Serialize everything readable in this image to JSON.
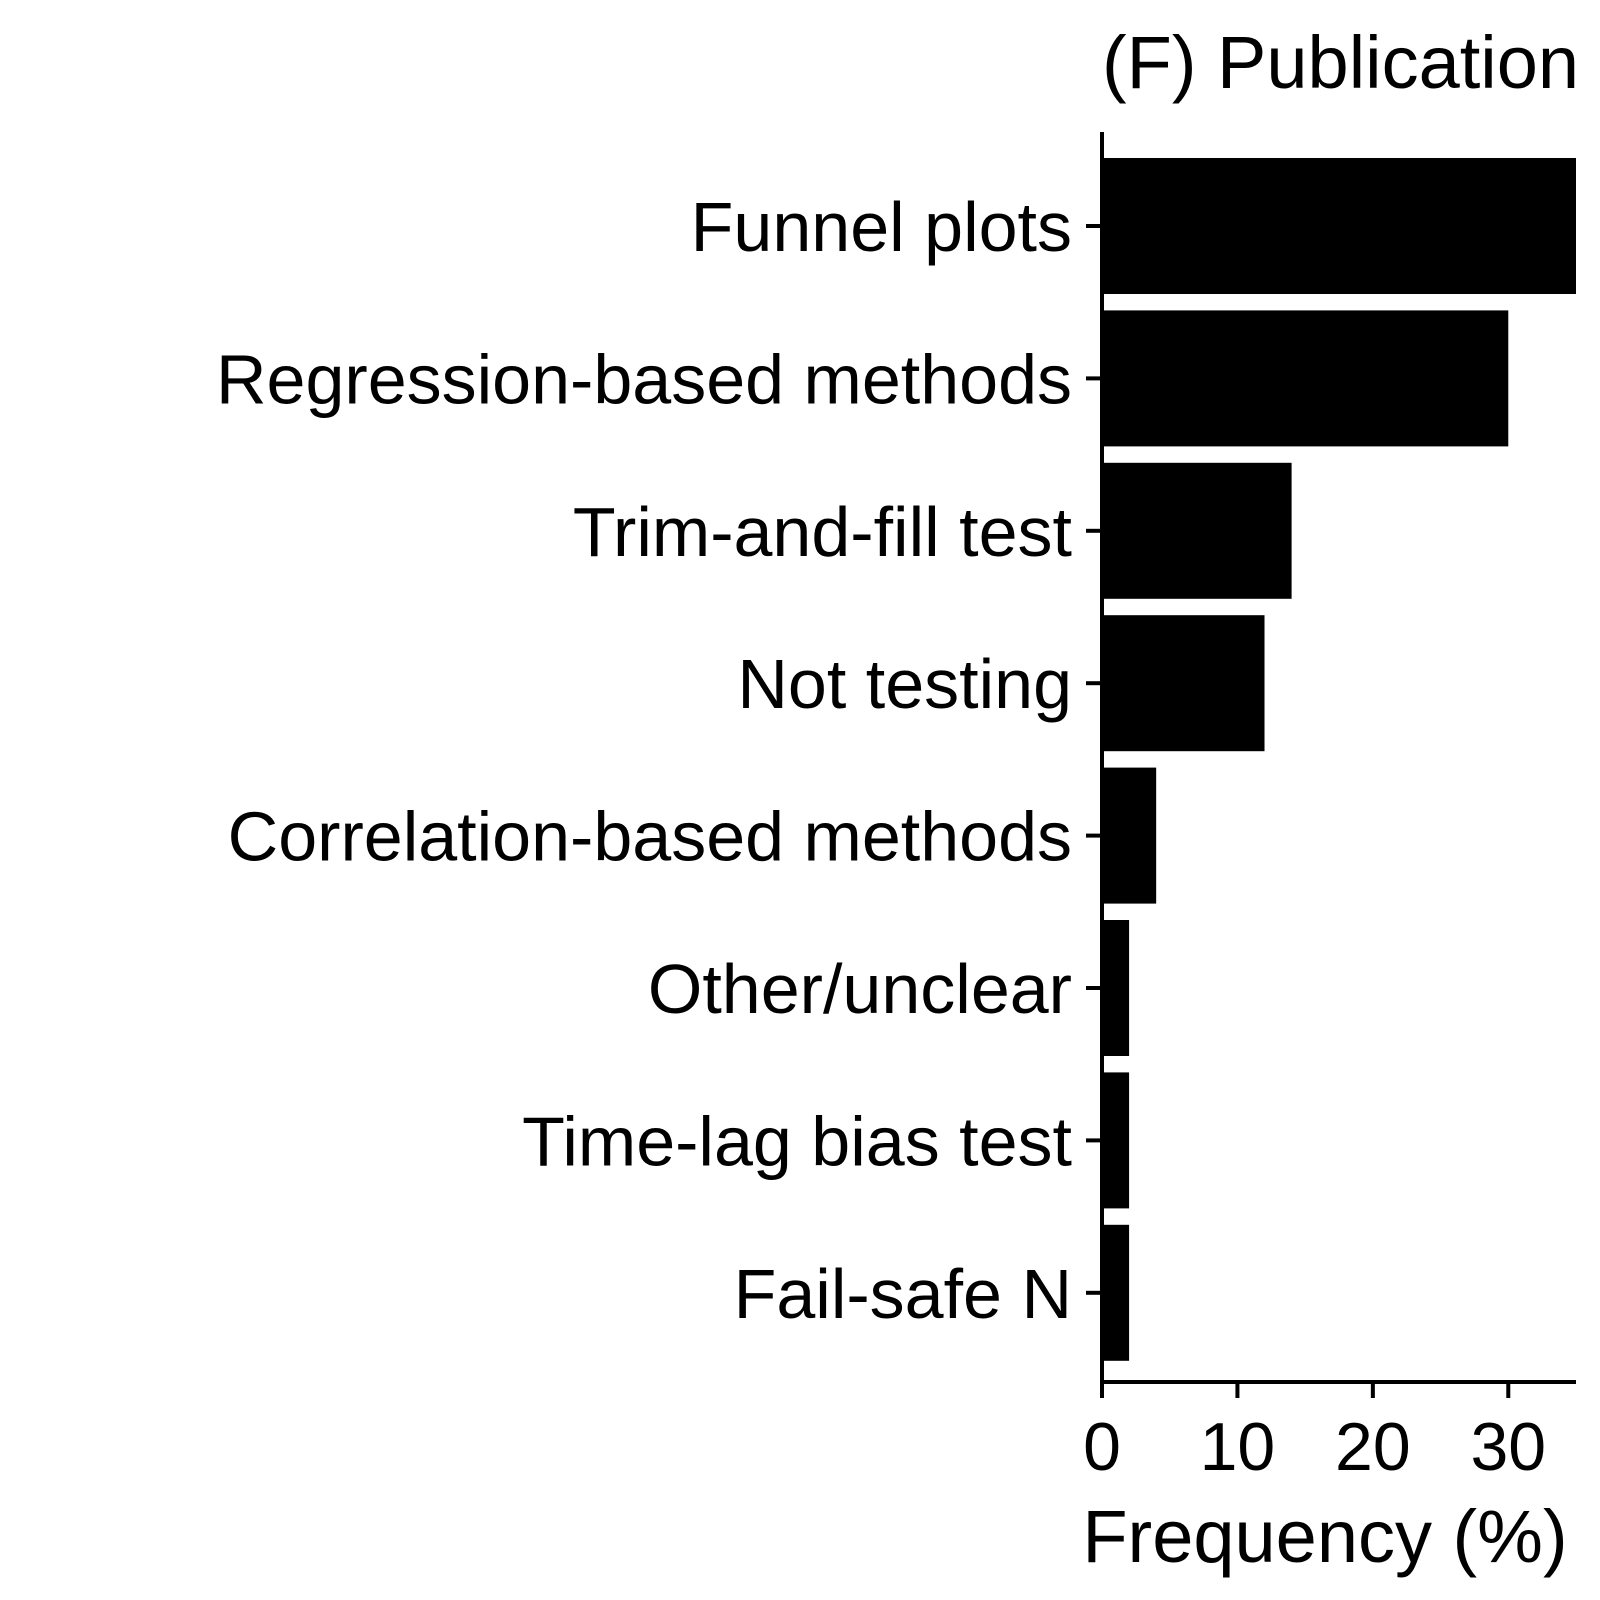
{
  "chart_data": {
    "type": "bar",
    "orientation": "horizontal",
    "title": "(F) Publication",
    "xlabel": "Frequency (%)",
    "ylabel": "",
    "categories": [
      "Funnel plots",
      "Regression-based methods",
      "Trim-and-fill test",
      "Not testing",
      "Correlation-based methods",
      "Other/unclear",
      "Time-lag bias test",
      "Fail-safe N"
    ],
    "values": [
      35,
      30,
      14,
      12,
      4,
      2,
      2,
      2
    ],
    "xlim": [
      0,
      35
    ],
    "xticks": [
      "0",
      "10",
      "20",
      "30"
    ],
    "bar_color": "#000000",
    "grid": false,
    "legend": "none"
  }
}
